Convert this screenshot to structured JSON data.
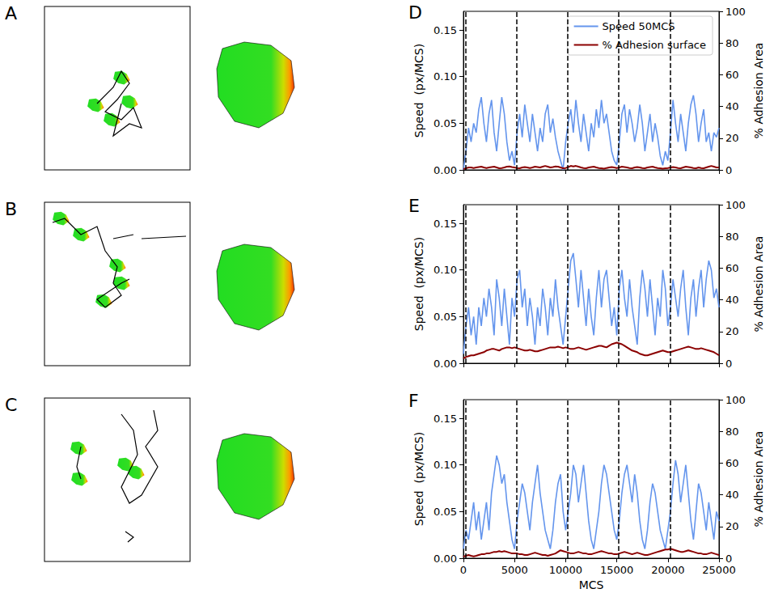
{
  "images": [
    {
      "label": "A"
    },
    {
      "label": "B"
    },
    {
      "label": "C"
    }
  ],
  "chart_data": [
    {
      "type": "line",
      "panel": "D",
      "x": [
        0,
        250,
        500,
        750,
        1000,
        1250,
        1500,
        1750,
        2000,
        2250,
        2500,
        2750,
        3000,
        3250,
        3500,
        3750,
        4000,
        4250,
        4500,
        4750,
        5000,
        5250,
        5500,
        5750,
        6000,
        6250,
        6500,
        6750,
        7000,
        7250,
        7500,
        7750,
        8000,
        8250,
        8500,
        8750,
        9000,
        9250,
        9500,
        9750,
        10000,
        10250,
        10500,
        10750,
        11000,
        11250,
        11500,
        11750,
        12000,
        12250,
        12500,
        12750,
        13000,
        13250,
        13500,
        13750,
        14000,
        14250,
        14500,
        14750,
        15000,
        15250,
        15500,
        15750,
        16000,
        16250,
        16500,
        16750,
        17000,
        17250,
        17500,
        17750,
        18000,
        18250,
        18500,
        18750,
        19000,
        19250,
        19500,
        19750,
        20000,
        20250,
        20500,
        20750,
        21000,
        21250,
        21500,
        21750,
        22000,
        22250,
        22500,
        22750,
        23000,
        23250,
        23500,
        23750,
        24000,
        24250,
        24500,
        24750,
        25000
      ],
      "series": [
        {
          "name": "Speed 50MCS",
          "color": "#6495ed",
          "values": [
            0.0,
            0.02,
            0.045,
            0.03,
            0.05,
            0.04,
            0.065,
            0.078,
            0.05,
            0.03,
            0.06,
            0.075,
            0.04,
            0.02,
            0.05,
            0.078,
            0.06,
            0.03,
            0.01,
            0.02,
            0.005,
            0.04,
            0.06,
            0.035,
            0.07,
            0.05,
            0.03,
            0.06,
            0.04,
            0.02,
            0.045,
            0.03,
            0.06,
            0.07,
            0.04,
            0.055,
            0.035,
            0.02,
            0.01,
            0.0,
            0.03,
            0.05,
            0.065,
            0.04,
            0.075,
            0.05,
            0.03,
            0.06,
            0.04,
            0.02,
            0.05,
            0.035,
            0.065,
            0.045,
            0.075,
            0.05,
            0.06,
            0.04,
            0.02,
            0.01,
            0.005,
            0.03,
            0.06,
            0.07,
            0.04,
            0.065,
            0.05,
            0.03,
            0.045,
            0.07,
            0.05,
            0.02,
            0.04,
            0.06,
            0.03,
            0.05,
            0.035,
            0.015,
            0.005,
            0.02,
            0.01,
            0.04,
            0.075,
            0.05,
            0.03,
            0.06,
            0.04,
            0.02,
            0.05,
            0.07,
            0.08,
            0.06,
            0.03,
            0.05,
            0.065,
            0.03,
            0.04,
            0.02,
            0.04,
            0.035,
            0.045
          ]
        },
        {
          "name": "% Adhesion surface",
          "color": "#8b0000",
          "axis": "y2",
          "values": [
            0.5,
            1,
            1.5,
            1.5,
            1.2,
            1.5,
            1.8,
            2,
            1.5,
            1.2,
            1.5,
            1.8,
            2,
            1.5,
            1,
            1.2,
            1.5,
            2,
            2.2,
            1.8,
            1.5,
            1.2,
            1,
            1.5,
            1.8,
            1.5,
            1.2,
            1.5,
            2,
            1.8,
            1.5,
            2,
            2.5,
            2,
            1.5,
            1.8,
            2.2,
            2,
            1.5,
            1,
            1.2,
            1.8,
            2.5,
            2.2,
            2.5,
            2,
            1.5,
            1.2,
            1,
            1.5,
            1.8,
            2,
            1.5,
            1.2,
            1,
            0.8,
            1.2,
            1.5,
            1.8,
            1.5,
            1.2,
            1.5,
            2,
            1.8,
            1.5,
            1.2,
            1,
            1.5,
            1.8,
            1.5,
            1.2,
            1,
            1.5,
            1.8,
            2,
            1.5,
            1.2,
            1,
            0.8,
            1,
            1.2,
            1.5,
            1.8,
            1.5,
            1.2,
            1,
            1.5,
            2,
            1.8,
            1.5,
            1.2,
            1,
            1.5,
            1.2,
            1,
            1.5,
            2,
            2.5,
            2,
            1.5,
            1.5
          ]
        }
      ],
      "xlim": [
        0,
        25000
      ],
      "xticks": [
        0,
        5000,
        10000,
        15000,
        20000,
        25000
      ],
      "ylim": [
        0,
        0.17
      ],
      "yticks": [
        {
          "value": 0,
          "label": "0.00"
        },
        {
          "value": 0.05,
          "label": "0.05"
        },
        {
          "value": 0.1,
          "label": "0.10"
        },
        {
          "value": 0.15,
          "label": "0.15"
        }
      ],
      "y2lim": [
        0,
        100
      ],
      "y2ticks": [
        0,
        20,
        40,
        60,
        80,
        100
      ],
      "y_label": "Speed  (px/MCS)",
      "y2_label": "% Adhesion Area",
      "vlines": [
        200,
        5200,
        10200,
        15200,
        20200
      ],
      "legend": "upper right",
      "tick_labels": "y",
      "grid": false
    },
    {
      "type": "line",
      "panel": "E",
      "x": [
        0,
        250,
        500,
        750,
        1000,
        1250,
        1500,
        1750,
        2000,
        2250,
        2500,
        2750,
        3000,
        3250,
        3500,
        3750,
        4000,
        4250,
        4500,
        4750,
        5000,
        5250,
        5500,
        5750,
        6000,
        6250,
        6500,
        6750,
        7000,
        7250,
        7500,
        7750,
        8000,
        8250,
        8500,
        8750,
        9000,
        9250,
        9500,
        9750,
        10000,
        10250,
        10500,
        10750,
        11000,
        11250,
        11500,
        11750,
        12000,
        12250,
        12500,
        12750,
        13000,
        13250,
        13500,
        13750,
        14000,
        14250,
        14500,
        14750,
        15000,
        15250,
        15500,
        15750,
        16000,
        16250,
        16500,
        16750,
        17000,
        17250,
        17500,
        17750,
        18000,
        18250,
        18500,
        18750,
        19000,
        19250,
        19500,
        19750,
        20000,
        20250,
        20500,
        20750,
        21000,
        21250,
        21500,
        21750,
        22000,
        22250,
        22500,
        22750,
        23000,
        23250,
        23500,
        23750,
        24000,
        24250,
        24500,
        24750,
        25000
      ],
      "series": [
        {
          "color": "#6495ed",
          "values": [
            0.01,
            0.04,
            0.06,
            0.03,
            0.05,
            0.02,
            0.06,
            0.04,
            0.07,
            0.05,
            0.08,
            0.06,
            0.03,
            0.09,
            0.07,
            0.04,
            0.08,
            0.05,
            0.02,
            0.07,
            0.05,
            0.09,
            0.1,
            0.06,
            0.08,
            0.04,
            0.07,
            0.05,
            0.02,
            0.06,
            0.04,
            0.08,
            0.06,
            0.03,
            0.07,
            0.05,
            0.09,
            0.06,
            0.04,
            0.02,
            0.05,
            0.08,
            0.11,
            0.118,
            0.09,
            0.06,
            0.1,
            0.07,
            0.04,
            0.08,
            0.05,
            0.03,
            0.07,
            0.1,
            0.06,
            0.09,
            0.1,
            0.07,
            0.04,
            0.06,
            0.03,
            0.08,
            0.1,
            0.07,
            0.05,
            0.09,
            0.06,
            0.04,
            0.02,
            0.07,
            0.1,
            0.08,
            0.05,
            0.09,
            0.06,
            0.03,
            0.07,
            0.05,
            0.1,
            0.08,
            0.04,
            0.06,
            0.09,
            0.07,
            0.05,
            0.08,
            0.1,
            0.06,
            0.03,
            0.07,
            0.09,
            0.05,
            0.08,
            0.1,
            0.06,
            0.09,
            0.11,
            0.1,
            0.07,
            0.08,
            0.06
          ]
        },
        {
          "color": "#8b0000",
          "axis": "y2",
          "values": [
            3,
            4,
            4.5,
            5,
            5,
            5.5,
            6,
            6.5,
            7,
            8,
            8.5,
            9,
            9,
            8.5,
            8,
            9,
            9.5,
            10,
            10,
            9.5,
            10,
            9.5,
            9,
            8.5,
            8,
            8,
            8.5,
            8,
            7.5,
            7.5,
            8,
            8.5,
            9,
            9.5,
            10,
            10,
            10,
            10.5,
            10,
            9.5,
            10,
            9.5,
            9,
            9,
            9.5,
            10,
            9.5,
            9,
            8.5,
            9,
            9.5,
            10,
            10.5,
            11,
            11,
            10.5,
            10,
            11,
            12,
            12.5,
            13,
            12.5,
            12,
            11,
            10,
            9,
            8,
            7.5,
            7,
            6,
            5.5,
            5,
            5,
            5.5,
            6,
            6.5,
            7,
            7.5,
            8,
            7.5,
            7,
            7,
            7.5,
            8,
            8.5,
            9,
            9.5,
            10,
            10.5,
            10,
            9.5,
            9,
            9,
            9.5,
            9,
            8.5,
            8,
            7.5,
            7,
            6,
            5
          ]
        }
      ],
      "xlim": [
        0,
        25000
      ],
      "xticks": [
        0,
        5000,
        10000,
        15000,
        20000,
        25000
      ],
      "ylim": [
        0,
        0.17
      ],
      "yticks": [
        {
          "value": 0,
          "label": "0.00"
        },
        {
          "value": 0.05,
          "label": "0.05"
        },
        {
          "value": 0.1,
          "label": "0.10"
        },
        {
          "value": 0.15,
          "label": "0.15"
        }
      ],
      "y2lim": [
        0,
        100
      ],
      "y2ticks": [
        0,
        20,
        40,
        60,
        80,
        100
      ],
      "y_label": "Speed  (px/MCS)",
      "y2_label": "% Adhesion Area",
      "vlines": [
        200,
        5200,
        10200,
        15200,
        20200
      ],
      "tick_labels": "y",
      "grid": false
    },
    {
      "type": "line",
      "panel": "F",
      "x": [
        0,
        250,
        500,
        750,
        1000,
        1250,
        1500,
        1750,
        2000,
        2250,
        2500,
        2750,
        3000,
        3250,
        3500,
        3750,
        4000,
        4250,
        4500,
        4750,
        5000,
        5250,
        5500,
        5750,
        6000,
        6250,
        6500,
        6750,
        7000,
        7250,
        7500,
        7750,
        8000,
        8250,
        8500,
        8750,
        9000,
        9250,
        9500,
        9750,
        10000,
        10250,
        10500,
        10750,
        11000,
        11250,
        11500,
        11750,
        12000,
        12250,
        12500,
        12750,
        13000,
        13250,
        13500,
        13750,
        14000,
        14250,
        14500,
        14750,
        15000,
        15250,
        15500,
        15750,
        16000,
        16250,
        16500,
        16750,
        17000,
        17250,
        17500,
        17750,
        18000,
        18250,
        18500,
        18750,
        19000,
        19250,
        19500,
        19750,
        20000,
        20250,
        20500,
        20750,
        21000,
        21250,
        21500,
        21750,
        22000,
        22250,
        22500,
        22750,
        23000,
        23250,
        23500,
        23750,
        24000,
        24250,
        24500,
        24750,
        25000
      ],
      "series": [
        {
          "color": "#6495ed",
          "values": [
            0.01,
            0.03,
            0.02,
            0.04,
            0.06,
            0.03,
            0.05,
            0.02,
            0.04,
            0.06,
            0.03,
            0.07,
            0.09,
            0.11,
            0.1,
            0.08,
            0.09,
            0.06,
            0.04,
            0.02,
            0.01,
            0.04,
            0.06,
            0.08,
            0.07,
            0.05,
            0.03,
            0.06,
            0.08,
            0.1,
            0.07,
            0.05,
            0.03,
            0.02,
            0.01,
            0.03,
            0.06,
            0.08,
            0.09,
            0.05,
            0.03,
            0.05,
            0.07,
            0.1,
            0.09,
            0.06,
            0.08,
            0.1,
            0.07,
            0.04,
            0.02,
            0.01,
            0.03,
            0.05,
            0.08,
            0.1,
            0.09,
            0.07,
            0.05,
            0.03,
            0.02,
            0.04,
            0.07,
            0.09,
            0.1,
            0.08,
            0.06,
            0.09,
            0.07,
            0.04,
            0.02,
            0.01,
            0.03,
            0.06,
            0.08,
            0.07,
            0.05,
            0.03,
            0.02,
            0.01,
            0.03,
            0.05,
            0.08,
            0.105,
            0.09,
            0.06,
            0.08,
            0.1,
            0.07,
            0.04,
            0.02,
            0.05,
            0.08,
            0.07,
            0.05,
            0.03,
            0.06,
            0.04,
            0.02,
            0.05,
            0.04
          ]
        },
        {
          "color": "#8b0000",
          "axis": "y2",
          "values": [
            1,
            1.5,
            2,
            1.5,
            1.2,
            1.5,
            2,
            2.5,
            2.5,
            3,
            3,
            3.5,
            4,
            4,
            4.5,
            4,
            4.5,
            4,
            3.5,
            3,
            3,
            3,
            2.5,
            2.5,
            2,
            2,
            2.5,
            3,
            3.5,
            3,
            2.5,
            2,
            2,
            1.5,
            2,
            2.5,
            3,
            4,
            5,
            4.5,
            4,
            3.5,
            3,
            3,
            3.5,
            4,
            3.5,
            3,
            3,
            2.5,
            2.5,
            3,
            3.5,
            4,
            4.5,
            4,
            3.5,
            3,
            3,
            2.5,
            2.5,
            3,
            3.5,
            4,
            3.5,
            3,
            2.5,
            3,
            3.5,
            3,
            2.5,
            2,
            2,
            2.5,
            3,
            3.5,
            4,
            4.5,
            5,
            5.5,
            5.5,
            6,
            5.5,
            5,
            4.5,
            4,
            4,
            4.5,
            5,
            4.5,
            4,
            3.5,
            3,
            3,
            2.5,
            2.5,
            3,
            3.5,
            3,
            2.5,
            2
          ]
        }
      ],
      "xlim": [
        0,
        25000
      ],
      "xticks": [
        0,
        5000,
        10000,
        15000,
        20000,
        25000
      ],
      "ylim": [
        0,
        0.17
      ],
      "yticks": [
        {
          "value": 0,
          "label": "0.00"
        },
        {
          "value": 0.05,
          "label": "0.05"
        },
        {
          "value": 0.1,
          "label": "0.10"
        },
        {
          "value": 0.15,
          "label": "0.15"
        }
      ],
      "y2lim": [
        0,
        100
      ],
      "y2ticks": [
        0,
        20,
        40,
        60,
        80,
        100
      ],
      "y_label": "Speed  (px/MCS)",
      "y2_label": "% Adhesion Area",
      "x_label": "MCS",
      "vlines": [
        200,
        5200,
        10200,
        15200,
        20200
      ],
      "grid": false
    }
  ]
}
